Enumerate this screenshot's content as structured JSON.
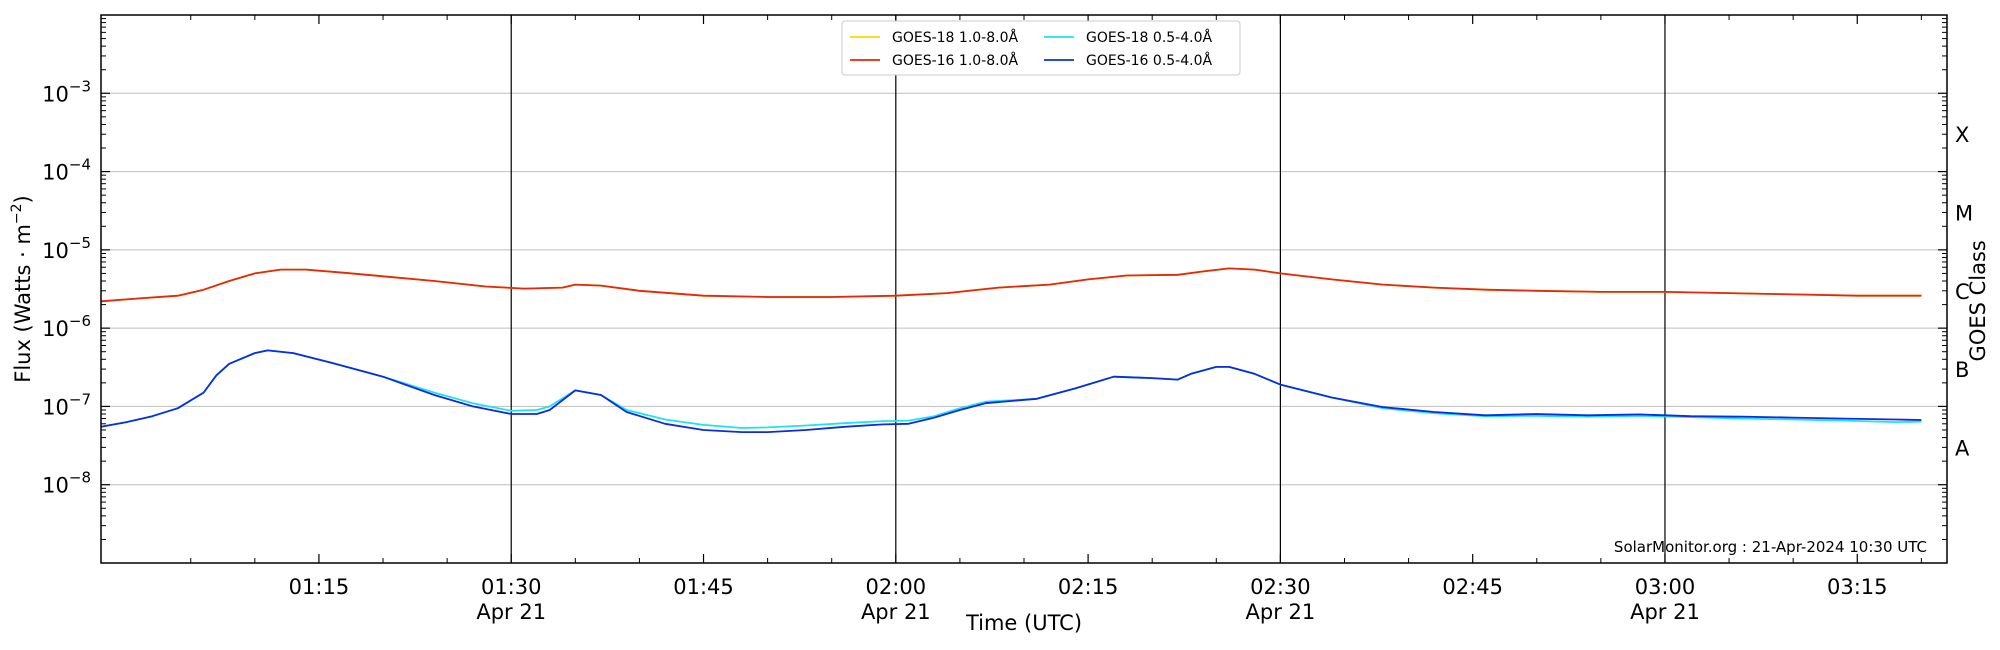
{
  "chart_data": {
    "type": "line",
    "title": "",
    "xlabel": "Time (UTC)",
    "ylabel": "Flux (Watts · m",
    "ylabel_sup": "−2",
    "ylabel_end": ")",
    "y2label": "GOES Class",
    "yscale": "log",
    "ylim": [
      1e-09,
      0.01
    ],
    "xlim": [
      "00:58",
      "03:22"
    ],
    "grid": "horizontal",
    "legend_position": "top-center",
    "credit": "SolarMonitor.org : 21-Apr-2024 10:30 UTC",
    "x_ticks": [
      {
        "time": "01:15",
        "label": "01:15",
        "sublabel": ""
      },
      {
        "time": "01:30",
        "label": "01:30",
        "sublabel": "Apr 21"
      },
      {
        "time": "01:45",
        "label": "01:45",
        "sublabel": ""
      },
      {
        "time": "02:00",
        "label": "02:00",
        "sublabel": "Apr 21"
      },
      {
        "time": "02:15",
        "label": "02:15",
        "sublabel": ""
      },
      {
        "time": "02:30",
        "label": "02:30",
        "sublabel": "Apr 21"
      },
      {
        "time": "02:45",
        "label": "02:45",
        "sublabel": ""
      },
      {
        "time": "03:00",
        "label": "03:00",
        "sublabel": "Apr 21"
      },
      {
        "time": "03:15",
        "label": "03:15",
        "sublabel": ""
      }
    ],
    "vlines": [
      "01:30",
      "02:00",
      "02:30",
      "03:00"
    ],
    "y_ticks": [
      {
        "value": 0.001,
        "base": "10",
        "exp": "−3"
      },
      {
        "value": 0.0001,
        "base": "10",
        "exp": "−4"
      },
      {
        "value": 1e-05,
        "base": "10",
        "exp": "−5"
      },
      {
        "value": 1e-06,
        "base": "10",
        "exp": "−6"
      },
      {
        "value": 1e-07,
        "base": "10",
        "exp": "−7"
      },
      {
        "value": 1e-08,
        "base": "10",
        "exp": "−8"
      }
    ],
    "goes_classes": [
      {
        "label": "X",
        "value": 0.0003
      },
      {
        "label": "M",
        "value": 3e-05
      },
      {
        "label": "C",
        "value": 3e-06
      },
      {
        "label": "B",
        "value": 3e-07
      },
      {
        "label": "A",
        "value": 3e-08
      }
    ],
    "series": [
      {
        "name": "GOES-18 1.0-8.0Å",
        "color": "#ffd700",
        "points": [
          [
            "00:58",
            2.2e-06
          ],
          [
            "01:01",
            2.4e-06
          ],
          [
            "01:04",
            2.6e-06
          ],
          [
            "01:06",
            3.1e-06
          ],
          [
            "01:08",
            4e-06
          ],
          [
            "01:10",
            5e-06
          ],
          [
            "01:12",
            5.6e-06
          ],
          [
            "01:14",
            5.6e-06
          ],
          [
            "01:17",
            5.1e-06
          ],
          [
            "01:20",
            4.6e-06
          ],
          [
            "01:24",
            4e-06
          ],
          [
            "01:28",
            3.4e-06
          ],
          [
            "01:31",
            3.2e-06
          ],
          [
            "01:34",
            3.3e-06
          ],
          [
            "01:35",
            3.6e-06
          ],
          [
            "01:37",
            3.5e-06
          ],
          [
            "01:40",
            3e-06
          ],
          [
            "01:45",
            2.6e-06
          ],
          [
            "01:50",
            2.5e-06
          ],
          [
            "01:55",
            2.5e-06
          ],
          [
            "02:00",
            2.6e-06
          ],
          [
            "02:04",
            2.8e-06
          ],
          [
            "02:08",
            3.3e-06
          ],
          [
            "02:12",
            3.6e-06
          ],
          [
            "02:15",
            4.2e-06
          ],
          [
            "02:18",
            4.7e-06
          ],
          [
            "02:22",
            4.8e-06
          ],
          [
            "02:24",
            5.3e-06
          ],
          [
            "02:26",
            5.8e-06
          ],
          [
            "02:28",
            5.6e-06
          ],
          [
            "02:30",
            5e-06
          ],
          [
            "02:34",
            4.2e-06
          ],
          [
            "02:38",
            3.6e-06
          ],
          [
            "02:42",
            3.3e-06
          ],
          [
            "02:46",
            3.1e-06
          ],
          [
            "02:50",
            3e-06
          ],
          [
            "02:55",
            2.9e-06
          ],
          [
            "03:00",
            2.9e-06
          ],
          [
            "03:05",
            2.8e-06
          ],
          [
            "03:10",
            2.7e-06
          ],
          [
            "03:15",
            2.6e-06
          ],
          [
            "03:20",
            2.6e-06
          ]
        ]
      },
      {
        "name": "GOES-16 1.0-8.0Å",
        "color": "#e8260d",
        "points": [
          [
            "00:58",
            2.2e-06
          ],
          [
            "01:01",
            2.4e-06
          ],
          [
            "01:04",
            2.6e-06
          ],
          [
            "01:06",
            3.1e-06
          ],
          [
            "01:08",
            4e-06
          ],
          [
            "01:10",
            5e-06
          ],
          [
            "01:12",
            5.6e-06
          ],
          [
            "01:14",
            5.6e-06
          ],
          [
            "01:17",
            5.1e-06
          ],
          [
            "01:20",
            4.6e-06
          ],
          [
            "01:24",
            4e-06
          ],
          [
            "01:28",
            3.4e-06
          ],
          [
            "01:31",
            3.2e-06
          ],
          [
            "01:34",
            3.3e-06
          ],
          [
            "01:35",
            3.6e-06
          ],
          [
            "01:37",
            3.5e-06
          ],
          [
            "01:40",
            3e-06
          ],
          [
            "01:45",
            2.6e-06
          ],
          [
            "01:50",
            2.5e-06
          ],
          [
            "01:55",
            2.5e-06
          ],
          [
            "02:00",
            2.6e-06
          ],
          [
            "02:04",
            2.8e-06
          ],
          [
            "02:08",
            3.3e-06
          ],
          [
            "02:12",
            3.6e-06
          ],
          [
            "02:15",
            4.2e-06
          ],
          [
            "02:18",
            4.7e-06
          ],
          [
            "02:22",
            4.8e-06
          ],
          [
            "02:24",
            5.3e-06
          ],
          [
            "02:26",
            5.8e-06
          ],
          [
            "02:28",
            5.6e-06
          ],
          [
            "02:30",
            5e-06
          ],
          [
            "02:34",
            4.2e-06
          ],
          [
            "02:38",
            3.6e-06
          ],
          [
            "02:42",
            3.3e-06
          ],
          [
            "02:46",
            3.1e-06
          ],
          [
            "02:50",
            3e-06
          ],
          [
            "02:55",
            2.9e-06
          ],
          [
            "03:00",
            2.9e-06
          ],
          [
            "03:05",
            2.8e-06
          ],
          [
            "03:10",
            2.7e-06
          ],
          [
            "03:15",
            2.6e-06
          ],
          [
            "03:20",
            2.6e-06
          ]
        ]
      },
      {
        "name": "GOES-18 0.5-4.0Å",
        "color": "#1ee3ef",
        "points": [
          [
            "00:58",
            5.5e-08
          ],
          [
            "01:00",
            6.3e-08
          ],
          [
            "01:02",
            7.5e-08
          ],
          [
            "01:04",
            9.5e-08
          ],
          [
            "01:06",
            1.5e-07
          ],
          [
            "01:07",
            2.5e-07
          ],
          [
            "01:08",
            3.5e-07
          ],
          [
            "01:10",
            4.8e-07
          ],
          [
            "01:11",
            5.2e-07
          ],
          [
            "01:13",
            4.8e-07
          ],
          [
            "01:16",
            3.6e-07
          ],
          [
            "01:20",
            2.4e-07
          ],
          [
            "01:24",
            1.5e-07
          ],
          [
            "01:27",
            1.1e-07
          ],
          [
            "01:30",
            8.8e-08
          ],
          [
            "01:32",
            9e-08
          ],
          [
            "01:33",
            1e-07
          ],
          [
            "01:35",
            1.6e-07
          ],
          [
            "01:37",
            1.4e-07
          ],
          [
            "01:39",
            9e-08
          ],
          [
            "01:42",
            6.8e-08
          ],
          [
            "01:45",
            5.8e-08
          ],
          [
            "01:48",
            5.3e-08
          ],
          [
            "01:50",
            5.4e-08
          ],
          [
            "01:53",
            5.7e-08
          ],
          [
            "01:56",
            6.1e-08
          ],
          [
            "01:59",
            6.5e-08
          ],
          [
            "02:01",
            6.6e-08
          ],
          [
            "02:03",
            7.5e-08
          ],
          [
            "02:05",
            9.5e-08
          ],
          [
            "02:07",
            1.15e-07
          ],
          [
            "02:11",
            1.25e-07
          ],
          [
            "02:14",
            1.7e-07
          ],
          [
            "02:17",
            2.4e-07
          ],
          [
            "02:20",
            2.3e-07
          ],
          [
            "02:22",
            2.2e-07
          ],
          [
            "02:23",
            2.6e-07
          ],
          [
            "02:25",
            3.2e-07
          ],
          [
            "02:26",
            3.2e-07
          ],
          [
            "02:28",
            2.6e-07
          ],
          [
            "02:30",
            1.9e-07
          ],
          [
            "02:34",
            1.3e-07
          ],
          [
            "02:38",
            9.5e-08
          ],
          [
            "02:42",
            8.2e-08
          ],
          [
            "02:46",
            7.5e-08
          ],
          [
            "02:50",
            7.6e-08
          ],
          [
            "02:54",
            7.4e-08
          ],
          [
            "02:58",
            7.6e-08
          ],
          [
            "03:02",
            7.3e-08
          ],
          [
            "03:06",
            7e-08
          ],
          [
            "03:10",
            6.8e-08
          ],
          [
            "03:14",
            6.6e-08
          ],
          [
            "03:18",
            6.3e-08
          ],
          [
            "03:20",
            6.4e-08
          ]
        ]
      },
      {
        "name": "GOES-16 0.5-4.0Å",
        "color": "#0b2ce0",
        "points": [
          [
            "00:58",
            5.5e-08
          ],
          [
            "01:00",
            6.3e-08
          ],
          [
            "01:02",
            7.5e-08
          ],
          [
            "01:04",
            9.5e-08
          ],
          [
            "01:06",
            1.5e-07
          ],
          [
            "01:07",
            2.5e-07
          ],
          [
            "01:08",
            3.5e-07
          ],
          [
            "01:10",
            4.8e-07
          ],
          [
            "01:11",
            5.2e-07
          ],
          [
            "01:13",
            4.8e-07
          ],
          [
            "01:16",
            3.6e-07
          ],
          [
            "01:20",
            2.4e-07
          ],
          [
            "01:24",
            1.4e-07
          ],
          [
            "01:27",
            1e-07
          ],
          [
            "01:30",
            8e-08
          ],
          [
            "01:32",
            8e-08
          ],
          [
            "01:33",
            9e-08
          ],
          [
            "01:35",
            1.6e-07
          ],
          [
            "01:37",
            1.4e-07
          ],
          [
            "01:39",
            8.5e-08
          ],
          [
            "01:42",
            6e-08
          ],
          [
            "01:45",
            5e-08
          ],
          [
            "01:48",
            4.7e-08
          ],
          [
            "01:50",
            4.7e-08
          ],
          [
            "01:53",
            5e-08
          ],
          [
            "01:56",
            5.5e-08
          ],
          [
            "01:59",
            5.9e-08
          ],
          [
            "02:01",
            6e-08
          ],
          [
            "02:03",
            7.2e-08
          ],
          [
            "02:05",
            9e-08
          ],
          [
            "02:07",
            1.1e-07
          ],
          [
            "02:11",
            1.25e-07
          ],
          [
            "02:14",
            1.7e-07
          ],
          [
            "02:17",
            2.4e-07
          ],
          [
            "02:20",
            2.3e-07
          ],
          [
            "02:22",
            2.2e-07
          ],
          [
            "02:23",
            2.6e-07
          ],
          [
            "02:25",
            3.2e-07
          ],
          [
            "02:26",
            3.2e-07
          ],
          [
            "02:28",
            2.6e-07
          ],
          [
            "02:30",
            1.9e-07
          ],
          [
            "02:34",
            1.3e-07
          ],
          [
            "02:38",
            9.8e-08
          ],
          [
            "02:42",
            8.5e-08
          ],
          [
            "02:46",
            7.7e-08
          ],
          [
            "02:50",
            8e-08
          ],
          [
            "02:54",
            7.7e-08
          ],
          [
            "02:58",
            7.9e-08
          ],
          [
            "03:02",
            7.5e-08
          ],
          [
            "03:06",
            7.4e-08
          ],
          [
            "03:10",
            7.2e-08
          ],
          [
            "03:14",
            7e-08
          ],
          [
            "03:18",
            6.8e-08
          ],
          [
            "03:20",
            6.7e-08
          ]
        ]
      }
    ]
  }
}
